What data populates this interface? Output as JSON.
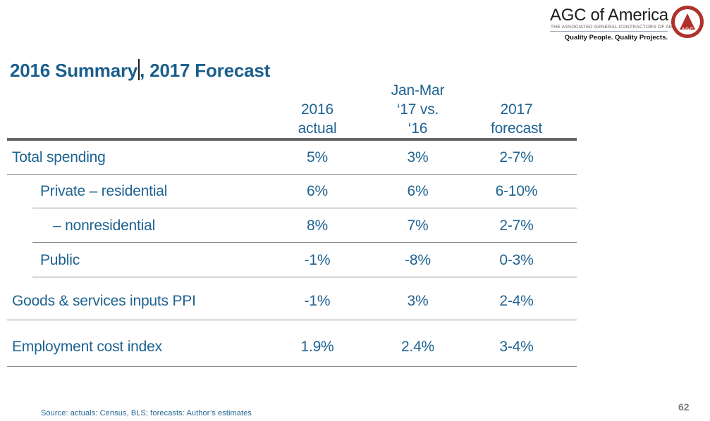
{
  "colors": {
    "accent_blue": "#1F6391",
    "title_blue": "#1B5E8C",
    "thick_rule_gray": "#666666",
    "thin_rule_gray": "#8C8C8C",
    "logo_red": "#B0302A",
    "page_number_gray": "#7F7F7F"
  },
  "logo": {
    "name": "AGC of America",
    "subtitle": "THE ASSOCIATED GENERAL CONTRACTORS OF AMERICA",
    "tagline": "Quality People. Quality Projects.",
    "emblem_text": "AGC"
  },
  "title": {
    "before_caret": "2016 Summary",
    "after_caret": ", 2017 Forecast"
  },
  "table": {
    "headers": [
      {
        "lines": [
          "",
          "2016",
          "actual"
        ]
      },
      {
        "lines": [
          "Jan-Mar",
          "‘17 vs.",
          "‘16"
        ]
      },
      {
        "lines": [
          "",
          "2017",
          "forecast"
        ]
      }
    ],
    "rows": [
      {
        "label": "Total spending",
        "values": [
          "5%",
          "3%",
          "2-7%"
        ]
      },
      {
        "label": "Private – residential",
        "values": [
          "6%",
          "6%",
          "6-10%"
        ]
      },
      {
        "label": "– nonresidential",
        "values": [
          "8%",
          "7%",
          "2-7%"
        ]
      },
      {
        "label": "Public",
        "values": [
          "-1%",
          "-8%",
          "0-3%"
        ]
      },
      {
        "label": "Goods & services inputs PPI",
        "values": [
          "-1%",
          "3%",
          "2-4%"
        ]
      },
      {
        "label": "Employment cost index",
        "values": [
          "1.9%",
          "2.4%",
          "3-4%"
        ]
      }
    ]
  },
  "footer": {
    "source_note": "Source: actuals: Census, BLS; forecasts: Author’s estimates",
    "page_number": "62"
  }
}
